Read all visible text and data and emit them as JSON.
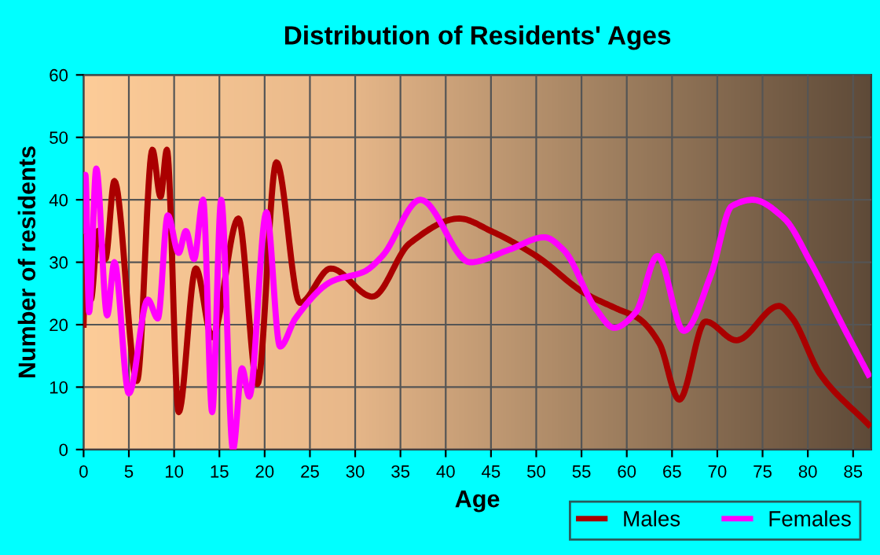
{
  "chart_data": {
    "type": "line",
    "title": "Distribution of Residents' Ages",
    "xlabel": "Age",
    "ylabel": "Number of residents",
    "xlim": [
      0,
      87
    ],
    "xticks": [
      0,
      5,
      10,
      15,
      20,
      25,
      30,
      35,
      40,
      45,
      50,
      55,
      60,
      65,
      70,
      75,
      80,
      85
    ],
    "ylim": [
      0,
      60
    ],
    "yticks": [
      0,
      10,
      20,
      30,
      40,
      50,
      60
    ],
    "grid": true,
    "legend": "bottom right",
    "marker": "none",
    "line_style": "solid",
    "series": [
      {
        "name": "Males",
        "color": "#aa0000",
        "x": [
          0,
          0.2,
          0.8,
          1.6,
          2.4,
          3.4,
          5.9,
          7.6,
          8.5,
          9.2,
          10.5,
          12.4,
          14.2,
          17.1,
          19.2,
          21.3,
          23.9,
          27.3,
          31.9,
          36,
          41.5,
          45,
          50,
          55.4,
          59,
          61.3,
          63.6,
          65.8,
          68.7,
          72.1,
          76.8,
          78.2,
          81.4,
          86.7
        ],
        "values": [
          20,
          35,
          24,
          35,
          30.5,
          43,
          11,
          48,
          40.5,
          48,
          6,
          29,
          18,
          37,
          10.5,
          46,
          23.5,
          29,
          24.5,
          33,
          37,
          35,
          31,
          25,
          22.5,
          21,
          17,
          8,
          20.5,
          17.5,
          23,
          21.2,
          12,
          4
        ]
      },
      {
        "name": "Females",
        "color": "#ff00ff",
        "x": [
          0,
          0.2,
          0.6,
          1.4,
          2.6,
          3.4,
          5,
          7.1,
          8.2,
          9.3,
          10.5,
          11.3,
          12.2,
          13.2,
          14.2,
          15.2,
          16.5,
          17.5,
          18.3,
          20.2,
          21.7,
          23.4,
          27.5,
          31,
          33,
          37.2,
          42.7,
          47,
          50.9,
          53,
          56.6,
          58.6,
          61,
          63.4,
          66.3,
          69.3,
          71.6,
          73.9,
          77.4,
          80.3,
          83.8,
          86.7
        ],
        "values": [
          35,
          44,
          22,
          45,
          21.5,
          30,
          9,
          24,
          21,
          37.5,
          31.5,
          35,
          30.5,
          40,
          6,
          40,
          0,
          13,
          8.5,
          38,
          16.5,
          21,
          27,
          28.5,
          31,
          40,
          30,
          32,
          34,
          32,
          22.5,
          19.5,
          22,
          31,
          19,
          28,
          39,
          40,
          37,
          30,
          20,
          12
        ]
      }
    ]
  }
}
